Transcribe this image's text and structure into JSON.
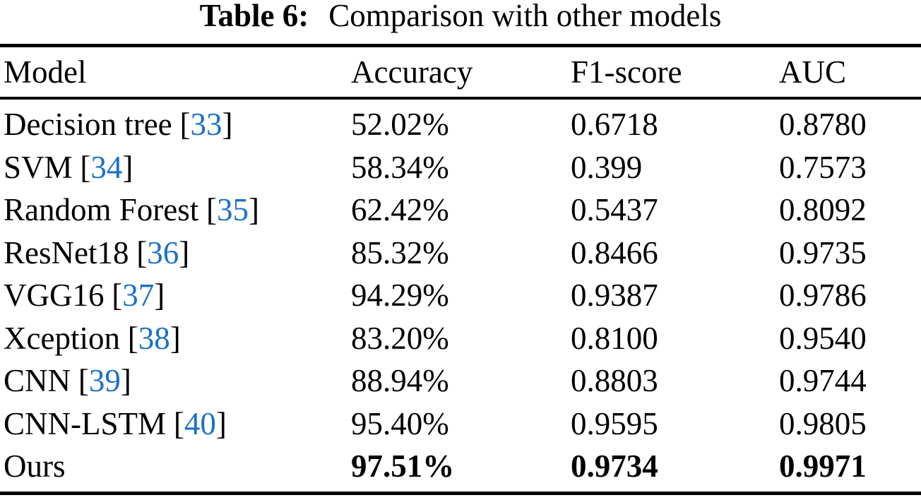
{
  "title": {
    "label": "Table 6:",
    "text": "Comparison with other models"
  },
  "columns": [
    "Model",
    "Accuracy",
    "F1-score",
    "AUC"
  ],
  "colors": {
    "citation_blue": "#1c70c8",
    "text": "#000000",
    "background": "#ffffff"
  },
  "table": {
    "rows": [
      {
        "model": "Decision tree",
        "cite_open": "[",
        "cite": "33",
        "cite_close": "]",
        "accuracy": "52.02%",
        "f1": "0.6718",
        "auc": "0.8780"
      },
      {
        "model": "SVM",
        "cite_open": "[",
        "cite": "34",
        "cite_close": "]",
        "accuracy": "58.34%",
        "f1": "0.399",
        "auc": "0.7573"
      },
      {
        "model": "Random Forest",
        "cite_open": "[",
        "cite": "35",
        "cite_close": "]",
        "accuracy": "62.42%",
        "f1": "0.5437",
        "auc": "0.8092"
      },
      {
        "model": "ResNet18",
        "cite_open": "[",
        "cite": "36",
        "cite_close": "]",
        "accuracy": "85.32%",
        "f1": "0.8466",
        "auc": "0.9735"
      },
      {
        "model": "VGG16",
        "cite_open": "[",
        "cite": "37",
        "cite_close": "]",
        "accuracy": "94.29%",
        "f1": "0.9387",
        "auc": "0.9786"
      },
      {
        "model": "Xception",
        "cite_open": "[",
        "cite": "38",
        "cite_close": "]",
        "accuracy": "83.20%",
        "f1": "0.8100",
        "auc": "0.9540"
      },
      {
        "model": "CNN",
        "cite_open": "[",
        "cite": "39",
        "cite_close": "]",
        "accuracy": "88.94%",
        "f1": "0.8803",
        "auc": "0.9744"
      },
      {
        "model": "CNN-LSTM",
        "cite_open": "[",
        "cite": "40",
        "cite_close": "]",
        "accuracy": "95.40%",
        "f1": "0.9595",
        "auc": "0.9805"
      },
      {
        "model": "Ours",
        "accuracy": "97.51%",
        "f1": "0.9734",
        "auc": "0.9971"
      }
    ]
  }
}
